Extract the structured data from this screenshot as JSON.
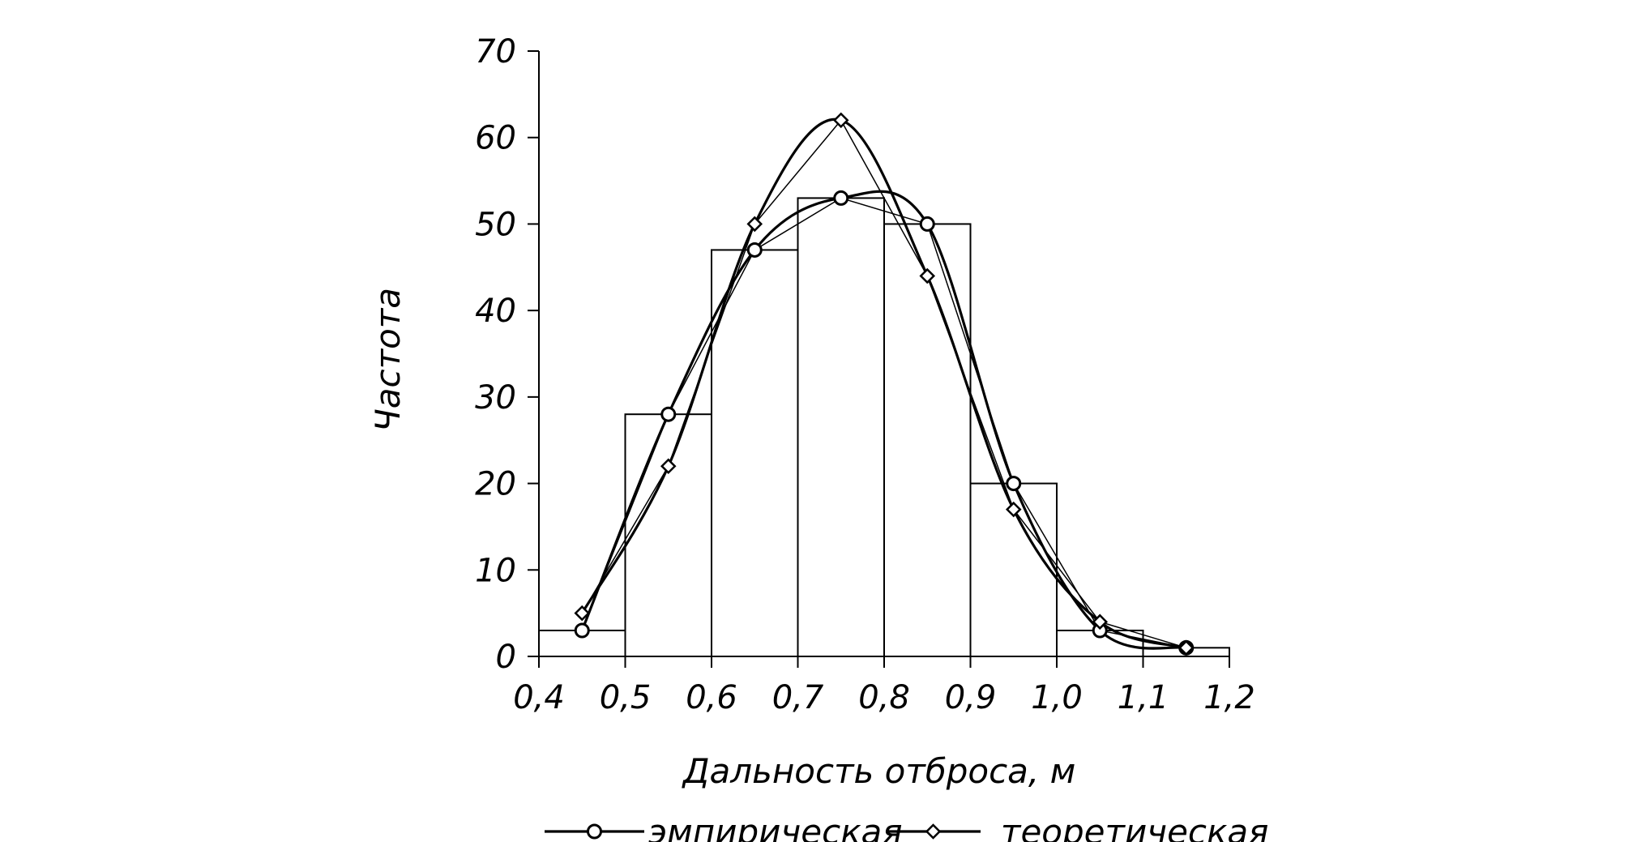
{
  "chart_data": {
    "type": "bar",
    "xlabel": "Дальность отброса, м",
    "ylabel": "Частота",
    "xlim": [
      0.4,
      1.2
    ],
    "ylim": [
      0,
      70
    ],
    "x_ticks": [
      "0,4",
      "0,5",
      "0,6",
      "0,7",
      "0,8",
      "0,9",
      "1,0",
      "1,1",
      "1,2"
    ],
    "y_ticks": [
      "0",
      "10",
      "20",
      "30",
      "40",
      "50",
      "60",
      "70"
    ],
    "grid": false,
    "legend_position": "bottom",
    "histogram": {
      "bins": [
        [
          0.4,
          0.5
        ],
        [
          0.5,
          0.6
        ],
        [
          0.6,
          0.7
        ],
        [
          0.7,
          0.8
        ],
        [
          0.8,
          0.9
        ],
        [
          0.9,
          1.0
        ],
        [
          1.0,
          1.1
        ],
        [
          1.1,
          1.2
        ]
      ],
      "values": [
        3,
        28,
        47,
        53,
        50,
        20,
        3,
        1
      ]
    },
    "series": [
      {
        "name": "эмпирическая",
        "marker": "circle",
        "x": [
          0.45,
          0.55,
          0.65,
          0.75,
          0.85,
          0.95,
          1.05,
          1.15
        ],
        "values": [
          3,
          28,
          47,
          53,
          50,
          20,
          3,
          1
        ]
      },
      {
        "name": "теоретическая",
        "marker": "diamond",
        "x": [
          0.45,
          0.55,
          0.65,
          0.75,
          0.85,
          0.95,
          1.05,
          1.15
        ],
        "values": [
          5,
          22,
          50,
          62,
          44,
          17,
          4,
          1
        ]
      }
    ],
    "colors": {
      "line": "#000000",
      "background": "#ffffff"
    }
  }
}
